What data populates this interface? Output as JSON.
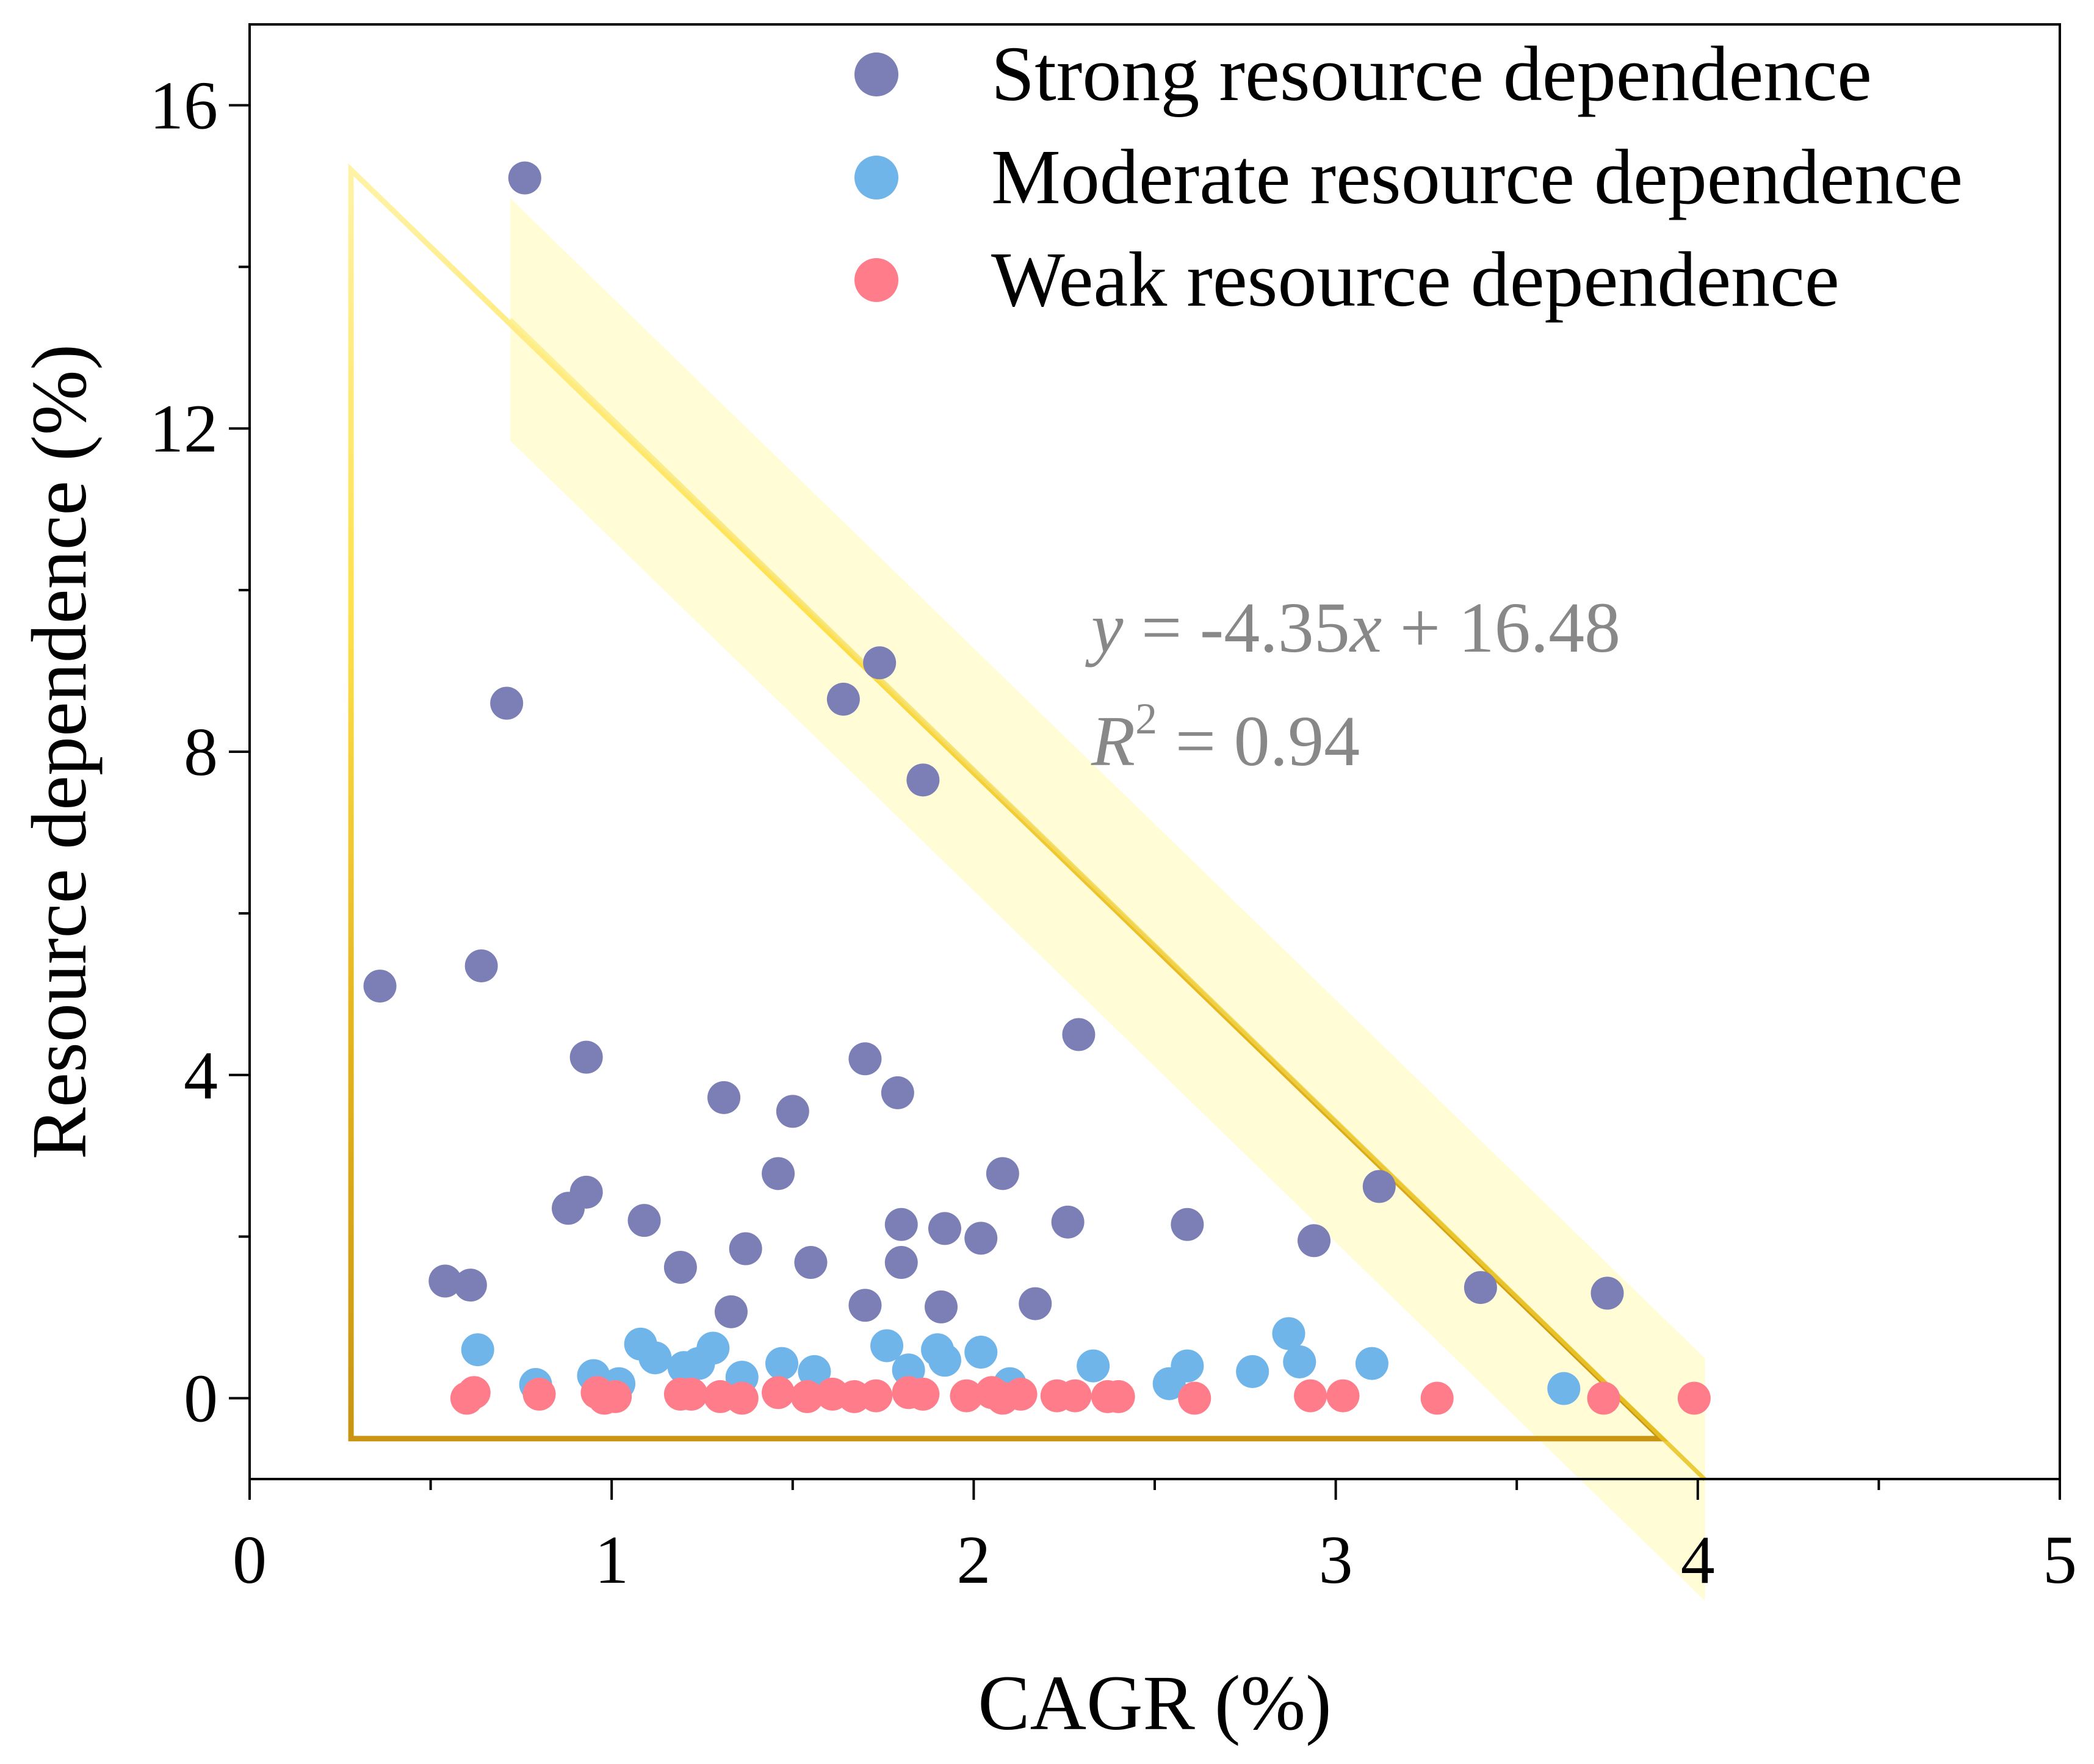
{
  "chart_data": {
    "type": "scatter",
    "xlabel": "CAGR (%)",
    "ylabel": "Resource dependence (%)",
    "xlim": [
      0,
      5
    ],
    "ylim": [
      -1,
      17
    ],
    "xticks": [
      0,
      1,
      2,
      3,
      4,
      5
    ],
    "xtick_labels": [
      "0",
      "1",
      "2",
      "3",
      "4",
      "5"
    ],
    "yticks": [
      0,
      4,
      8,
      12,
      16
    ],
    "ytick_labels": [
      "0",
      "4",
      "8",
      "12",
      "16"
    ],
    "grid": false,
    "legend_position": "top-right",
    "annotation": {
      "equation": {
        "y": "y",
        "rest": " = -4.35",
        "x": "x",
        "tail": " + 16.48"
      },
      "r2": {
        "r": "R",
        "sup": "2",
        "rest": " = 0.94"
      }
    },
    "regression": {
      "slope": -4.35,
      "intercept": 16.48,
      "x_range": [
        0.72,
        4.02
      ],
      "band_top_offset": 1.5,
      "band_bottom_offset": -1.5
    },
    "triangle": {
      "vertices": [
        [
          0.28,
          15.2
        ],
        [
          0.28,
          -0.5
        ],
        [
          3.9,
          -0.5
        ]
      ],
      "color": "#d4a017"
    },
    "series": [
      {
        "name": "Strong resource dependence",
        "color": "#7b7fb5",
        "points": [
          [
            0.76,
            15.1
          ],
          [
            0.36,
            5.1
          ],
          [
            0.64,
            5.35
          ],
          [
            0.71,
            8.6
          ],
          [
            0.54,
            1.45
          ],
          [
            0.61,
            1.4
          ],
          [
            0.93,
            4.22
          ],
          [
            0.88,
            2.35
          ],
          [
            0.93,
            2.55
          ],
          [
            1.09,
            2.2
          ],
          [
            1.19,
            1.62
          ],
          [
            1.31,
            3.72
          ],
          [
            1.33,
            1.07
          ],
          [
            1.37,
            1.85
          ],
          [
            1.46,
            2.78
          ],
          [
            1.5,
            3.55
          ],
          [
            1.55,
            1.68
          ],
          [
            1.64,
            8.65
          ],
          [
            1.7,
            4.2
          ],
          [
            1.7,
            1.15
          ],
          [
            1.74,
            9.1
          ],
          [
            1.79,
            3.78
          ],
          [
            1.8,
            2.15
          ],
          [
            1.8,
            1.68
          ],
          [
            1.86,
            7.65
          ],
          [
            1.91,
            1.13
          ],
          [
            1.92,
            2.1
          ],
          [
            2.02,
            1.98
          ],
          [
            2.08,
            2.78
          ],
          [
            2.17,
            1.17
          ],
          [
            2.26,
            2.18
          ],
          [
            2.29,
            4.5
          ],
          [
            2.59,
            2.15
          ],
          [
            2.94,
            1.95
          ],
          [
            3.12,
            2.62
          ],
          [
            3.4,
            1.37
          ],
          [
            3.75,
            1.3
          ]
        ]
      },
      {
        "name": "Moderate resource dependence",
        "color": "#6fb5ea",
        "points": [
          [
            0.63,
            0.6
          ],
          [
            0.79,
            0.17
          ],
          [
            0.95,
            0.28
          ],
          [
            1.02,
            0.18
          ],
          [
            1.08,
            0.67
          ],
          [
            1.12,
            0.5
          ],
          [
            1.2,
            0.38
          ],
          [
            1.24,
            0.43
          ],
          [
            1.28,
            0.62
          ],
          [
            1.36,
            0.26
          ],
          [
            1.47,
            0.43
          ],
          [
            1.56,
            0.33
          ],
          [
            1.76,
            0.65
          ],
          [
            1.82,
            0.35
          ],
          [
            1.9,
            0.6
          ],
          [
            1.92,
            0.47
          ],
          [
            2.02,
            0.57
          ],
          [
            2.1,
            0.18
          ],
          [
            2.33,
            0.4
          ],
          [
            2.54,
            0.18
          ],
          [
            2.59,
            0.4
          ],
          [
            2.77,
            0.33
          ],
          [
            2.87,
            0.8
          ],
          [
            2.9,
            0.45
          ],
          [
            3.1,
            0.43
          ],
          [
            3.63,
            0.12
          ]
        ]
      },
      {
        "name": "Weak resource dependence",
        "color": "#ff7c8a",
        "points": [
          [
            0.6,
            0.0
          ],
          [
            0.62,
            0.07
          ],
          [
            0.8,
            0.05
          ],
          [
            0.96,
            0.07
          ],
          [
            0.98,
            0.0
          ],
          [
            1.01,
            0.02
          ],
          [
            1.19,
            0.05
          ],
          [
            1.22,
            0.05
          ],
          [
            1.3,
            0.02
          ],
          [
            1.36,
            0.0
          ],
          [
            1.46,
            0.07
          ],
          [
            1.54,
            0.02
          ],
          [
            1.61,
            0.05
          ],
          [
            1.67,
            0.02
          ],
          [
            1.73,
            0.03
          ],
          [
            1.82,
            0.07
          ],
          [
            1.86,
            0.05
          ],
          [
            1.98,
            0.03
          ],
          [
            2.05,
            0.07
          ],
          [
            2.08,
            0.0
          ],
          [
            2.13,
            0.05
          ],
          [
            2.23,
            0.03
          ],
          [
            2.28,
            0.03
          ],
          [
            2.37,
            0.02
          ],
          [
            2.4,
            0.02
          ],
          [
            2.61,
            0.0
          ],
          [
            2.93,
            0.03
          ],
          [
            3.02,
            0.03
          ],
          [
            3.28,
            0.0
          ],
          [
            3.74,
            0.0
          ],
          [
            3.99,
            0.0
          ]
        ]
      }
    ]
  }
}
